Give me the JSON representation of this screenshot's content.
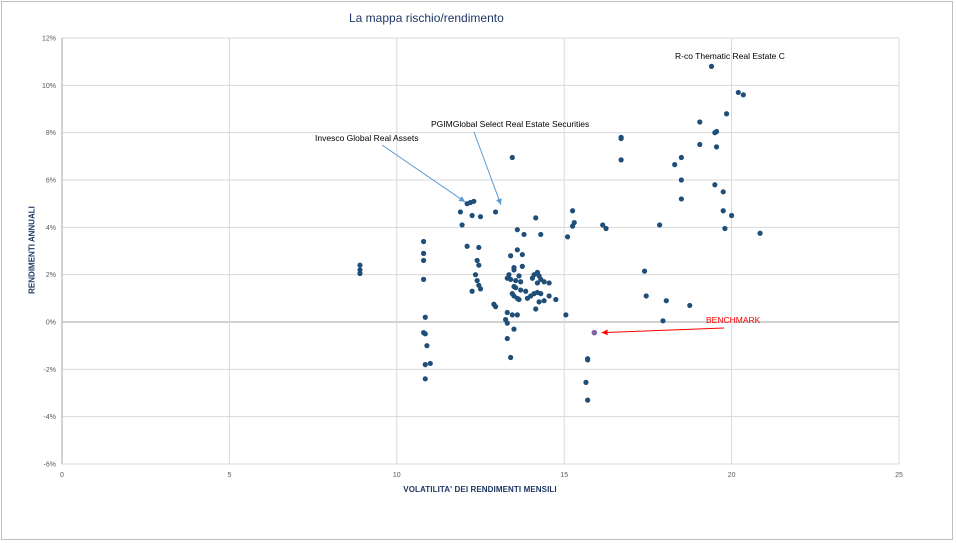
{
  "chart_data": {
    "type": "scatter",
    "title": "La mappa rischio/rendimento",
    "xlabel": "VOLATILITA' DEI RENDIMENTI MENSILI",
    "ylabel": "RENDIMENTI ANNUALI",
    "xlim": [
      0,
      25
    ],
    "ylim": [
      -6,
      12
    ],
    "x_ticks": [
      "0",
      "5",
      "10",
      "15",
      "20",
      "25"
    ],
    "y_ticks": [
      "-6%",
      "-4%",
      "-2%",
      "0%",
      "2%",
      "4%",
      "6%",
      "8%",
      "10%",
      "12%"
    ],
    "grid": true,
    "colors": {
      "points": "#1f4e79",
      "benchmark": "#8064a2",
      "arrow_blue": "#5b9bd5",
      "arrow_red": "#ff0000"
    },
    "points": [
      [
        8.9,
        2.4
      ],
      [
        8.9,
        2.2
      ],
      [
        8.9,
        2.05
      ],
      [
        10.8,
        3.4
      ],
      [
        10.8,
        2.9
      ],
      [
        10.8,
        2.6
      ],
      [
        10.8,
        1.8
      ],
      [
        10.85,
        0.2
      ],
      [
        10.8,
        -0.45
      ],
      [
        10.85,
        -0.5
      ],
      [
        10.9,
        -1.0
      ],
      [
        10.85,
        -1.8
      ],
      [
        11.0,
        -1.75
      ],
      [
        10.85,
        -2.4
      ],
      [
        11.9,
        4.65
      ],
      [
        11.95,
        4.1
      ],
      [
        12.1,
        5.0
      ],
      [
        12.2,
        5.05
      ],
      [
        12.3,
        5.1
      ],
      [
        12.25,
        4.5
      ],
      [
        12.5,
        4.45
      ],
      [
        12.1,
        3.2
      ],
      [
        12.45,
        3.15
      ],
      [
        12.4,
        2.6
      ],
      [
        12.45,
        2.4
      ],
      [
        12.35,
        2.0
      ],
      [
        12.4,
        1.75
      ],
      [
        12.45,
        1.55
      ],
      [
        12.5,
        1.4
      ],
      [
        12.25,
        1.3
      ],
      [
        12.95,
        0.65
      ],
      [
        12.9,
        0.75
      ],
      [
        12.95,
        4.65
      ],
      [
        13.45,
        6.95
      ],
      [
        13.6,
        3.9
      ],
      [
        13.8,
        3.7
      ],
      [
        13.6,
        3.05
      ],
      [
        13.75,
        2.85
      ],
      [
        13.4,
        2.8
      ],
      [
        13.5,
        2.3
      ],
      [
        13.5,
        2.2
      ],
      [
        13.35,
        2.0
      ],
      [
        13.65,
        1.95
      ],
      [
        13.3,
        1.85
      ],
      [
        13.4,
        1.8
      ],
      [
        13.55,
        1.75
      ],
      [
        13.7,
        1.7
      ],
      [
        13.5,
        1.5
      ],
      [
        13.55,
        1.45
      ],
      [
        13.7,
        1.35
      ],
      [
        13.45,
        1.2
      ],
      [
        13.5,
        1.1
      ],
      [
        13.6,
        1.0
      ],
      [
        13.65,
        0.95
      ],
      [
        13.3,
        0.4
      ],
      [
        13.45,
        0.3
      ],
      [
        13.6,
        0.3
      ],
      [
        13.25,
        0.1
      ],
      [
        13.3,
        -0.05
      ],
      [
        13.5,
        -0.3
      ],
      [
        13.3,
        -0.7
      ],
      [
        13.4,
        -1.5
      ],
      [
        13.75,
        2.35
      ],
      [
        13.85,
        1.3
      ],
      [
        13.9,
        1.0
      ],
      [
        14.15,
        4.4
      ],
      [
        14.3,
        3.7
      ],
      [
        14.1,
        2.0
      ],
      [
        14.2,
        2.1
      ],
      [
        14.25,
        1.95
      ],
      [
        14.05,
        1.85
      ],
      [
        14.3,
        1.8
      ],
      [
        14.2,
        1.65
      ],
      [
        14.4,
        1.7
      ],
      [
        14.55,
        1.65
      ],
      [
        14.0,
        1.1
      ],
      [
        14.1,
        1.2
      ],
      [
        14.2,
        1.25
      ],
      [
        14.3,
        1.2
      ],
      [
        14.25,
        0.85
      ],
      [
        14.4,
        0.9
      ],
      [
        14.55,
        1.1
      ],
      [
        14.75,
        0.95
      ],
      [
        14.15,
        0.55
      ],
      [
        15.05,
        0.3
      ],
      [
        15.1,
        3.6
      ],
      [
        15.25,
        4.7
      ],
      [
        15.3,
        4.2
      ],
      [
        15.25,
        4.05
      ],
      [
        16.15,
        4.1
      ],
      [
        16.25,
        3.95
      ],
      [
        16.7,
        7.8
      ],
      [
        16.7,
        7.75
      ],
      [
        16.7,
        6.85
      ],
      [
        15.7,
        -1.55
      ],
      [
        15.7,
        -1.6
      ],
      [
        15.65,
        -2.55
      ],
      [
        15.7,
        -3.3
      ],
      [
        17.4,
        2.15
      ],
      [
        17.45,
        1.1
      ],
      [
        17.85,
        4.1
      ],
      [
        17.95,
        0.05
      ],
      [
        18.05,
        0.9
      ],
      [
        18.3,
        6.65
      ],
      [
        18.5,
        6.95
      ],
      [
        18.5,
        6.0
      ],
      [
        18.5,
        5.2
      ],
      [
        18.75,
        0.7
      ],
      [
        19.05,
        8.45
      ],
      [
        19.05,
        7.5
      ],
      [
        19.5,
        8.0
      ],
      [
        19.55,
        8.05
      ],
      [
        19.55,
        7.4
      ],
      [
        19.5,
        5.8
      ],
      [
        19.75,
        5.5
      ],
      [
        19.75,
        4.7
      ],
      [
        19.8,
        3.95
      ],
      [
        19.85,
        8.8
      ],
      [
        20.0,
        4.5
      ],
      [
        20.2,
        9.7
      ],
      [
        20.35,
        9.6
      ],
      [
        19.4,
        10.8
      ],
      [
        20.85,
        3.75
      ]
    ],
    "benchmark_point": [
      15.9,
      -0.45
    ],
    "annotations": [
      {
        "text": "R-co Thematic Real Estate C",
        "point": [
          19.4,
          10.8
        ]
      },
      {
        "text": "PGIMGlobal Select Real Estate Securities",
        "point": [
          13.05,
          4.7
        ]
      },
      {
        "text": "Invesco Global Real Assets",
        "point": [
          12.1,
          5.2
        ]
      },
      {
        "text": "BENCHMARK",
        "point": [
          16.0,
          -0.45
        ]
      }
    ]
  }
}
